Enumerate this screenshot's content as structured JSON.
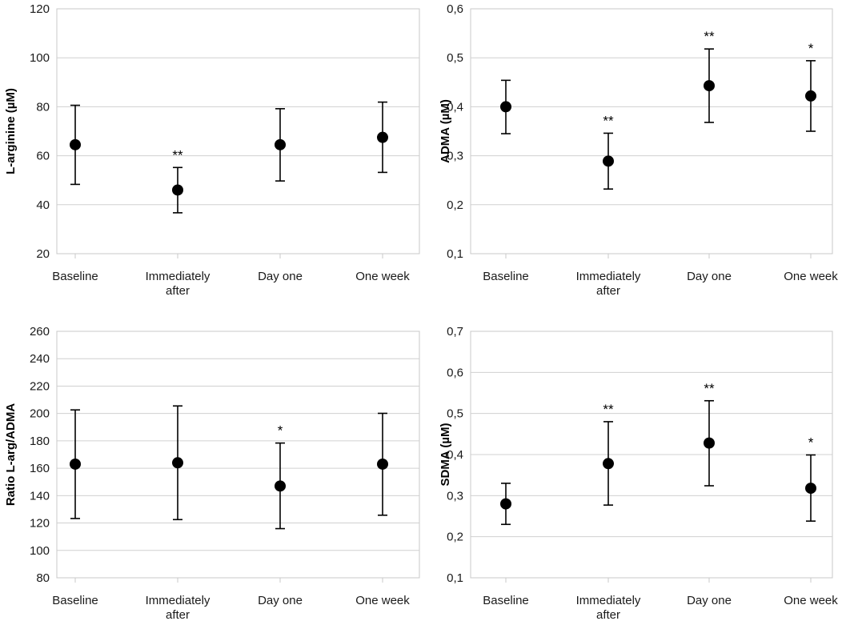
{
  "chart_data": [
    {
      "type": "scatter",
      "panel": "top-left",
      "categories": [
        "Baseline",
        "Immediately after",
        "Day one",
        "One week"
      ],
      "category_lines": [
        [
          "Baseline"
        ],
        [
          "Immediately",
          "after"
        ],
        [
          "Day one"
        ],
        [
          "One week"
        ]
      ],
      "values": [
        64.5,
        46,
        64.5,
        67.5
      ],
      "error_low": [
        48.3,
        36.7,
        49.7,
        53.2
      ],
      "error_high": [
        80.6,
        55.2,
        79.2,
        81.9
      ],
      "annotations": [
        "",
        "**",
        "",
        ""
      ],
      "ylabel": "L-arginine (µM)",
      "xlabel": "",
      "ylim": [
        20,
        120
      ],
      "yticks": [
        20,
        40,
        60,
        80,
        100,
        120
      ],
      "ytick_labels": [
        "20",
        "40",
        "60",
        "80",
        "100",
        "120"
      ],
      "grid": true
    },
    {
      "type": "scatter",
      "panel": "top-right",
      "categories": [
        "Baseline",
        "Immediately after",
        "Day one",
        "One week"
      ],
      "category_lines": [
        [
          "Baseline"
        ],
        [
          "Immediately",
          "after"
        ],
        [
          "Day one"
        ],
        [
          "One week"
        ]
      ],
      "values": [
        0.4,
        0.289,
        0.443,
        0.422
      ],
      "error_low": [
        0.345,
        0.232,
        0.368,
        0.35
      ],
      "error_high": [
        0.454,
        0.346,
        0.518,
        0.494
      ],
      "annotations": [
        "",
        "**",
        "**",
        "*"
      ],
      "ylabel": "ADMA (µM)",
      "xlabel": "",
      "ylim": [
        0.1,
        0.6
      ],
      "yticks": [
        0.1,
        0.2,
        0.3,
        0.4,
        0.5,
        0.6
      ],
      "ytick_labels": [
        "0,1",
        "0,2",
        "0,3",
        "0,4",
        "0,5",
        "0,6"
      ],
      "grid": true
    },
    {
      "type": "scatter",
      "panel": "bottom-left",
      "categories": [
        "Baseline",
        "Immediately after",
        "Day one",
        "One week"
      ],
      "category_lines": [
        [
          "Baseline"
        ],
        [
          "Immediately",
          "after"
        ],
        [
          "Day one"
        ],
        [
          "One week"
        ]
      ],
      "values": [
        163,
        164,
        147,
        163
      ],
      "error_low": [
        123.3,
        122.5,
        115.9,
        125.7
      ],
      "error_high": [
        202.6,
        205.5,
        178.4,
        200.1
      ],
      "annotations": [
        "",
        "",
        "*",
        ""
      ],
      "ylabel": "Ratio L-arg/ADMA",
      "xlabel": "",
      "ylim": [
        80,
        260
      ],
      "yticks": [
        80,
        100,
        120,
        140,
        160,
        180,
        200,
        220,
        240,
        260
      ],
      "ytick_labels": [
        "80",
        "100",
        "120",
        "140",
        "160",
        "180",
        "200",
        "220",
        "240",
        "260"
      ],
      "grid": true
    },
    {
      "type": "scatter",
      "panel": "bottom-right",
      "categories": [
        "Baseline",
        "Immediately after",
        "Day one",
        "One week"
      ],
      "category_lines": [
        [
          "Baseline"
        ],
        [
          "Immediately",
          "after"
        ],
        [
          "Day one"
        ],
        [
          "One week"
        ]
      ],
      "values": [
        0.28,
        0.378,
        0.428,
        0.318
      ],
      "error_low": [
        0.23,
        0.277,
        0.324,
        0.238
      ],
      "error_high": [
        0.33,
        0.48,
        0.531,
        0.399
      ],
      "annotations": [
        "",
        "**",
        "**",
        "*"
      ],
      "ylabel": "SDMA (µM)",
      "xlabel": "",
      "ylim": [
        0.1,
        0.7
      ],
      "yticks": [
        0.1,
        0.2,
        0.3,
        0.4,
        0.5,
        0.6,
        0.7
      ],
      "ytick_labels": [
        "0,1",
        "0,2",
        "0,3",
        "0,4",
        "0,5",
        "0,6",
        "0,7"
      ],
      "grid": true
    }
  ]
}
